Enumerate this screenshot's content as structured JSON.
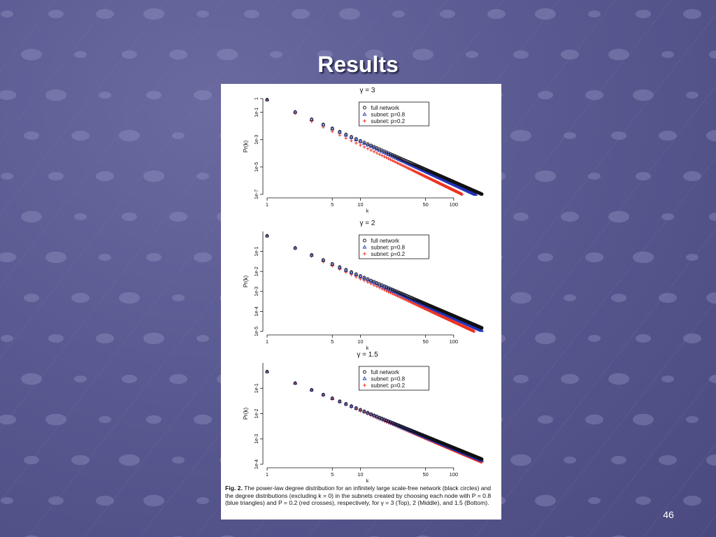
{
  "slide": {
    "title": "Results",
    "number": "46"
  },
  "caption": {
    "label": "Fig. 2.",
    "text": "The power-law degree distribution for an infinitely large scale-free network (black circles) and the degree distributions (excluding k = 0) in the subnets created by choosing each node with P = 0.8 (blue triangles) and P = 0.2 (red crosses), respectively, for γ = 3 (Top), 2 (Middle), and 1.5 (Bottom)."
  },
  "colors": {
    "full": "#111111",
    "p08": "#2233bb",
    "p02": "#ee3322"
  },
  "chart_data": [
    {
      "type": "scatter",
      "title": "γ = 3",
      "xlabel": "k",
      "ylabel": "Pr(k)",
      "x_scale": "log",
      "y_scale": "log",
      "xlim": [
        1,
        200
      ],
      "ylim": [
        1e-07,
        1
      ],
      "x_ticks": [
        1,
        5,
        10,
        50,
        100
      ],
      "x_tick_labels": [
        "1",
        "5",
        "10",
        "50",
        "100"
      ],
      "y_ticks": [
        1e-07,
        1e-05,
        0.001,
        0.1,
        1
      ],
      "y_tick_labels": [
        "1e-7",
        "1e-5",
        "1e-3",
        "1e-1",
        "1"
      ],
      "legend": "top-right",
      "k_range": [
        1,
        200
      ],
      "series": [
        {
          "name": "full network",
          "marker": "circle",
          "pr_at_k1": 0.83,
          "exponent": 3.0
        },
        {
          "name": "subnet: p=0.8",
          "marker": "triangle",
          "pr_at_k1": 0.83,
          "exponent": 3.0,
          "tail_factor": 0.6
        },
        {
          "name": "subnet: p=0.2",
          "marker": "cross",
          "pr_at_k1": 0.8,
          "exponent": 3.3
        }
      ]
    },
    {
      "type": "scatter",
      "title": "γ = 2",
      "xlabel": "k",
      "ylabel": "Pr(k)",
      "x_scale": "log",
      "y_scale": "log",
      "xlim": [
        1,
        200
      ],
      "ylim": [
        1e-05,
        1
      ],
      "x_ticks": [
        1,
        5,
        10,
        50,
        100
      ],
      "x_tick_labels": [
        "1",
        "5",
        "10",
        "50",
        "100"
      ],
      "y_ticks": [
        1e-05,
        0.0001,
        0.001,
        0.01,
        0.1
      ],
      "y_tick_labels": [
        "1e-5",
        "1e-4",
        "1e-3",
        "1e-2",
        "1e-1"
      ],
      "legend": "top-right",
      "k_range": [
        1,
        200
      ],
      "series": [
        {
          "name": "full network",
          "marker": "circle",
          "pr_at_k1": 0.6,
          "exponent": 2.0
        },
        {
          "name": "subnet: p=0.8",
          "marker": "triangle",
          "pr_at_k1": 0.6,
          "exponent": 2.0,
          "tail_factor": 0.75
        },
        {
          "name": "subnet: p=0.2",
          "marker": "cross",
          "pr_at_k1": 0.6,
          "exponent": 2.15
        }
      ]
    },
    {
      "type": "scatter",
      "title": "γ = 1.5",
      "xlabel": "k",
      "ylabel": "Pr(k)",
      "x_scale": "log",
      "y_scale": "log",
      "xlim": [
        1,
        200
      ],
      "ylim": [
        0.0001,
        1
      ],
      "x_ticks": [
        1,
        5,
        10,
        50,
        100
      ],
      "x_tick_labels": [
        "1",
        "5",
        "10",
        "50",
        "100"
      ],
      "y_ticks": [
        0.0001,
        0.001,
        0.01,
        0.1
      ],
      "y_tick_labels": [
        "1e-4",
        "1e-3",
        "1e-2",
        "1e-1"
      ],
      "legend": "top-right",
      "k_range": [
        1,
        200
      ],
      "series": [
        {
          "name": "full network",
          "marker": "circle",
          "pr_at_k1": 0.45,
          "exponent": 1.5
        },
        {
          "name": "subnet: p=0.8",
          "marker": "triangle",
          "pr_at_k1": 0.45,
          "exponent": 1.5,
          "tail_factor": 0.9
        },
        {
          "name": "subnet: p=0.2",
          "marker": "cross",
          "pr_at_k1": 0.45,
          "exponent": 1.55
        }
      ]
    }
  ]
}
